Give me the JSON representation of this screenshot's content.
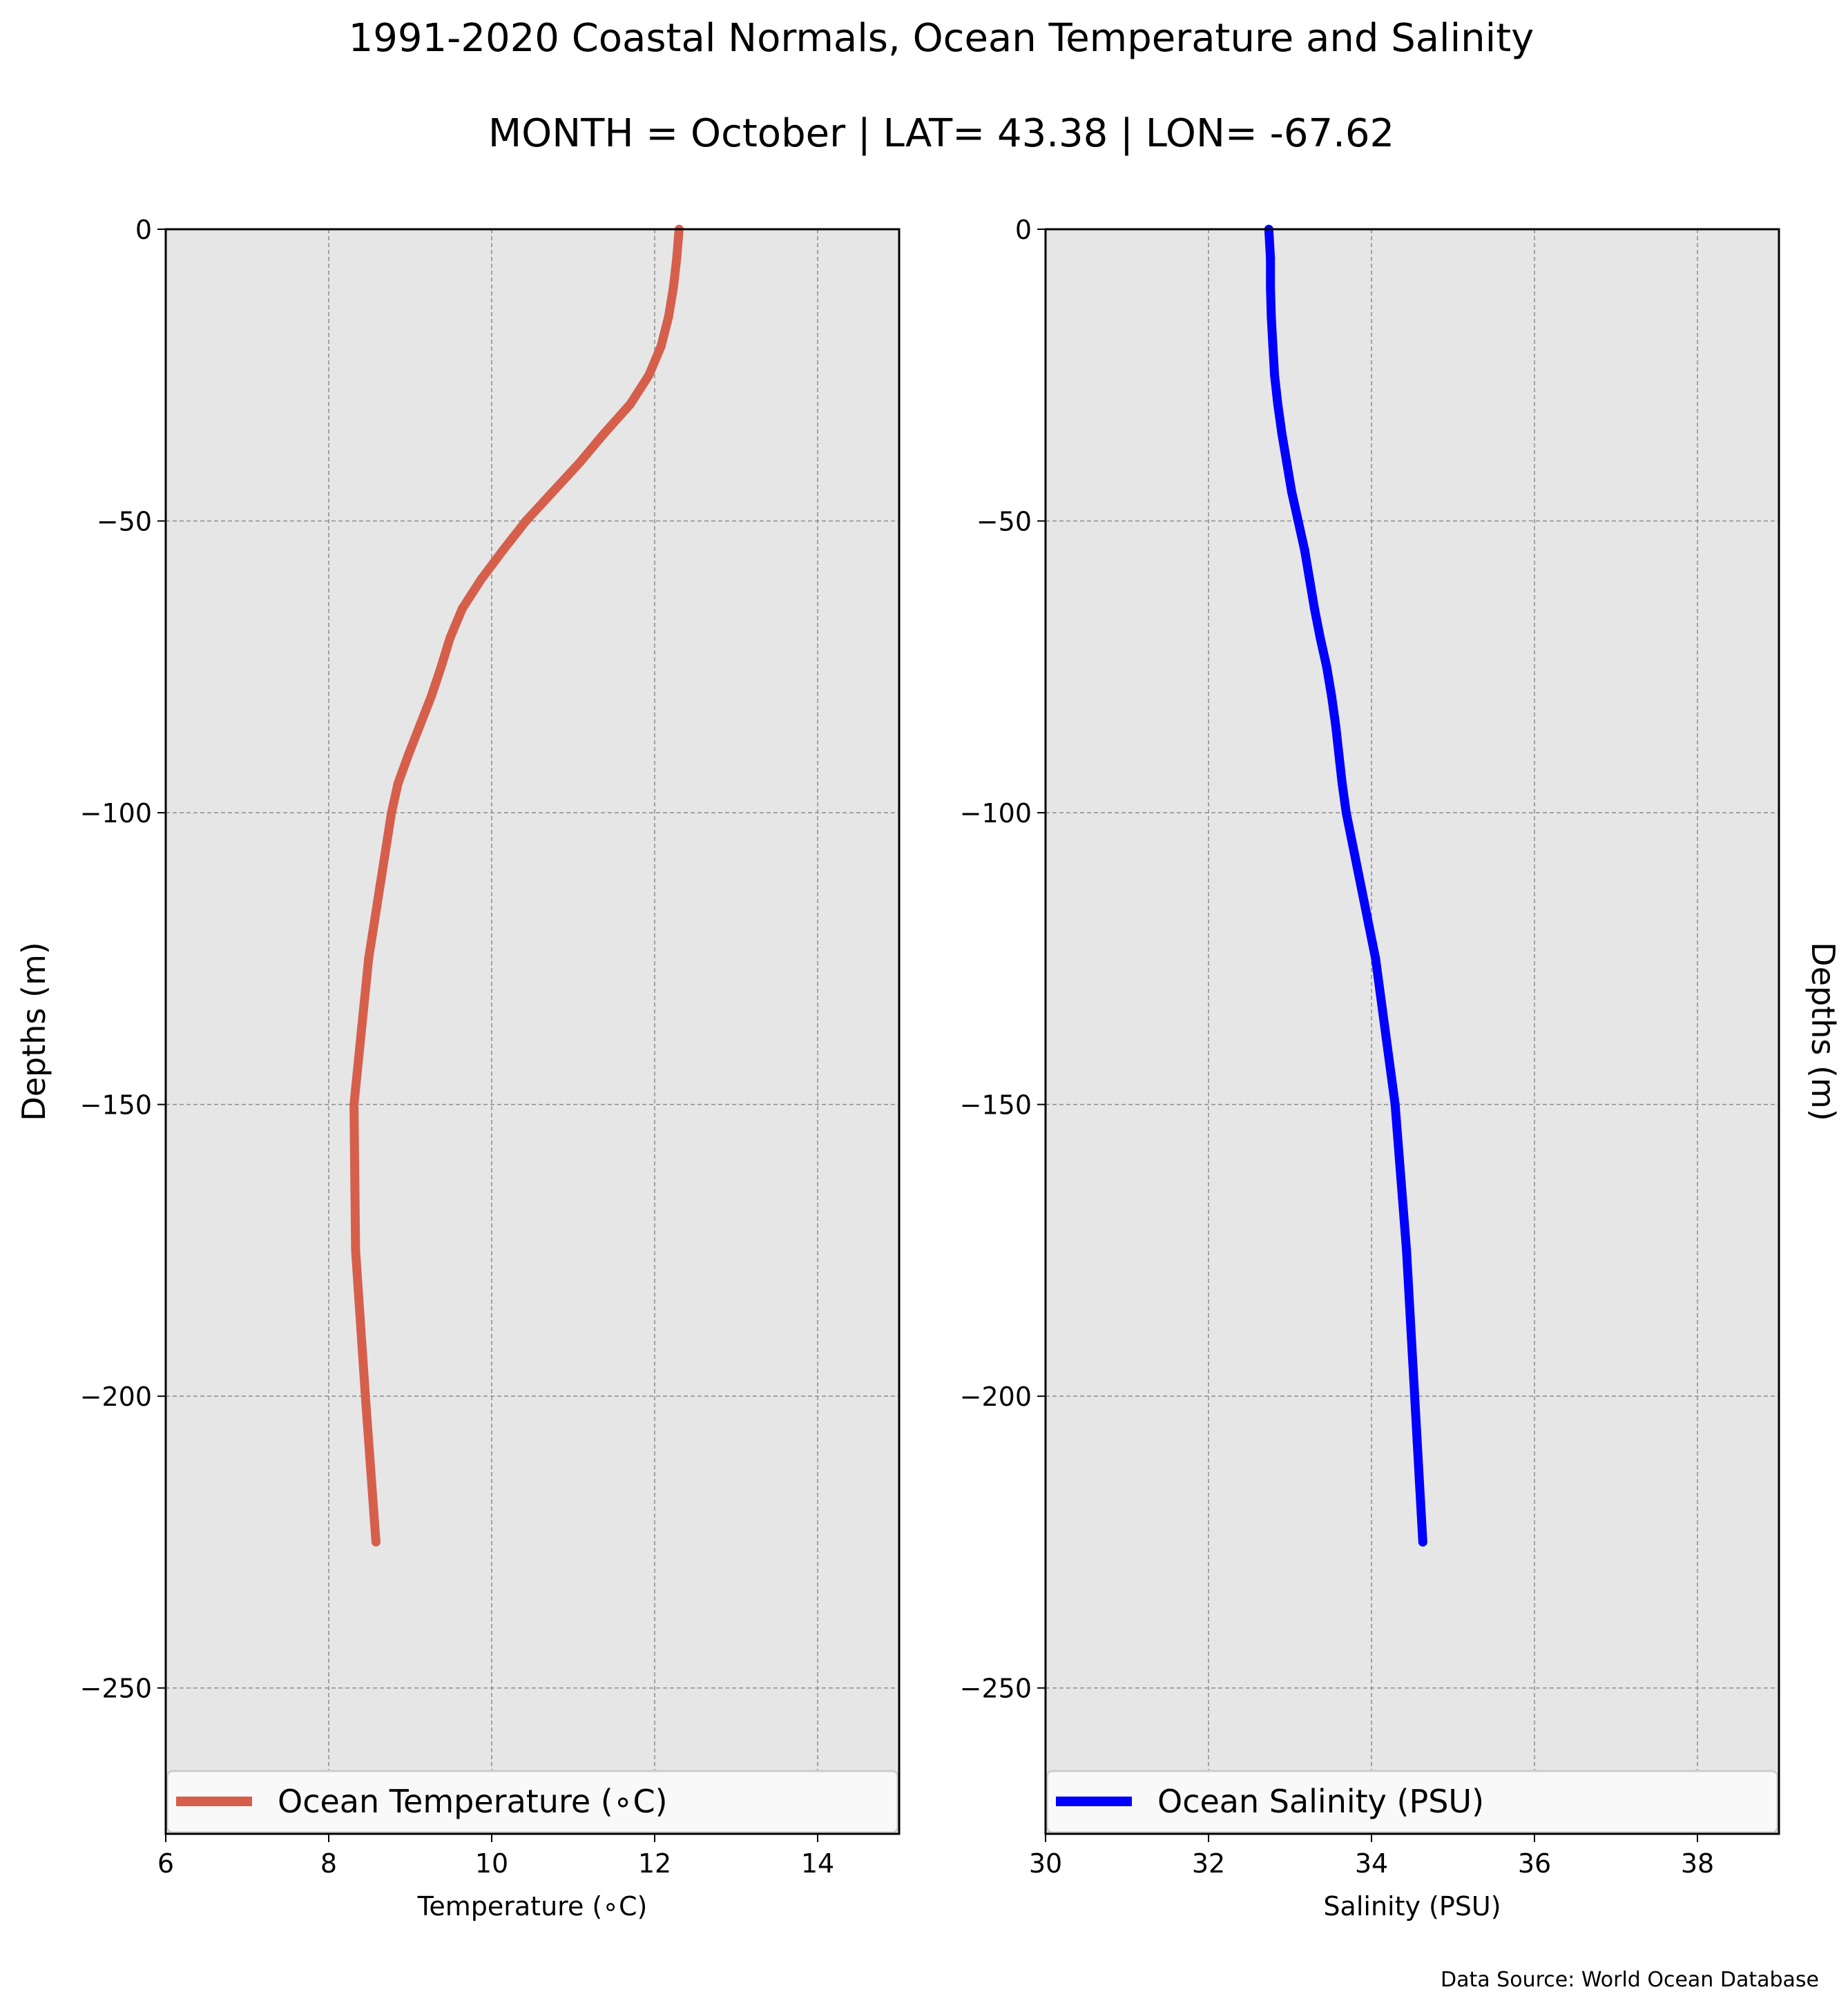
{
  "title": "1991-2020 Coastal Normals, Ocean Temperature and Salinity",
  "subtitle": "MONTH = October | LAT= 43.38 | LON= -67.62",
  "source": "Data Source: World Ocean Database",
  "chart_data": [
    {
      "type": "line",
      "xlabel": "Temperature ($^\\circ$C)",
      "xlabel_display": "Temperature (∘C)",
      "ylabel": "Depths (m)",
      "xlim": [
        6,
        15
      ],
      "ylim": [
        -275,
        0
      ],
      "xticks": [
        6,
        8,
        10,
        12,
        14
      ],
      "yticks": [
        0,
        -50,
        -100,
        -150,
        -200,
        -250
      ],
      "grid": true,
      "legend_position": "bottom",
      "series": [
        {
          "name": "Ocean Temperature (∘C)",
          "color": "#d65f4c",
          "depth": [
            0,
            -5,
            -10,
            -15,
            -20,
            -25,
            -30,
            -35,
            -40,
            -45,
            -50,
            -55,
            -60,
            -65,
            -70,
            -75,
            -80,
            -85,
            -90,
            -95,
            -100,
            -125,
            -150,
            -175,
            -200,
            -225
          ],
          "values": [
            12.3,
            12.27,
            12.23,
            12.17,
            12.08,
            11.93,
            11.7,
            11.38,
            11.08,
            10.75,
            10.42,
            10.14,
            9.87,
            9.64,
            9.49,
            9.38,
            9.26,
            9.12,
            8.98,
            8.85,
            8.77,
            8.49,
            8.31,
            8.33,
            8.45,
            8.58
          ]
        }
      ]
    },
    {
      "type": "line",
      "xlabel": "Salinity (PSU)",
      "ylabel": "Depths (m)",
      "xlim": [
        30,
        39
      ],
      "ylim": [
        -275,
        0
      ],
      "xticks": [
        30,
        32,
        34,
        36,
        38
      ],
      "yticks": [
        0,
        -50,
        -100,
        -150,
        -200,
        -250
      ],
      "grid": true,
      "legend_position": "bottom",
      "series": [
        {
          "name": "Ocean Salinity (PSU)",
          "color": "#0000ff",
          "depth": [
            0,
            -5,
            -10,
            -15,
            -20,
            -25,
            -30,
            -35,
            -40,
            -45,
            -50,
            -55,
            -60,
            -65,
            -70,
            -75,
            -80,
            -85,
            -90,
            -95,
            -100,
            -125,
            -150,
            -175,
            -200,
            -225
          ],
          "values": [
            32.74,
            32.76,
            32.76,
            32.77,
            32.79,
            32.81,
            32.85,
            32.9,
            32.96,
            33.02,
            33.1,
            33.18,
            33.24,
            33.3,
            33.37,
            33.45,
            33.51,
            33.56,
            33.6,
            33.64,
            33.69,
            34.05,
            34.29,
            34.43,
            34.53,
            34.63
          ]
        }
      ]
    }
  ]
}
